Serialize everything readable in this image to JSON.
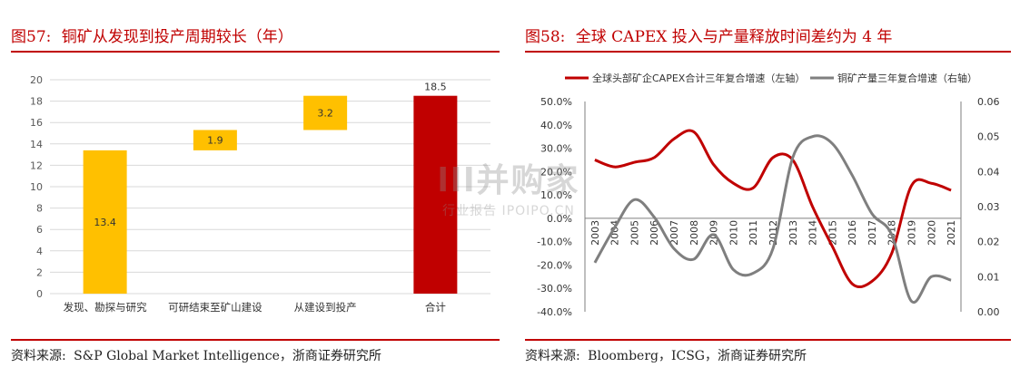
{
  "left": {
    "fig_label": "图57:",
    "title": "铜矿从发现到投产周期较长（年）",
    "source": "资料来源:",
    "source_text": "S&P Global Market Intelligence，浙商证券研究所",
    "chart_data": {
      "type": "bar",
      "subtype": "waterfall",
      "categories": [
        "发现、勘探与研究",
        "可研结束至矿山建设",
        "从建设到投产",
        "合计"
      ],
      "values": [
        13.4,
        1.9,
        3.2,
        18.5
      ],
      "bases": [
        0,
        13.4,
        15.3,
        0
      ],
      "data_labels": [
        "13.4",
        "1.9",
        "3.2",
        "18.5"
      ],
      "colors": [
        "#ffc000",
        "#ffc000",
        "#ffc000",
        "#c00000"
      ],
      "ylim": [
        0,
        20
      ],
      "yticks": [
        "0",
        "2",
        "4",
        "6",
        "8",
        "10",
        "12",
        "14",
        "16",
        "18",
        "20"
      ],
      "grid": true
    }
  },
  "right": {
    "fig_label": "图58:",
    "title": "全球 CAPEX 投入与产量释放时间差约为 4 年",
    "source": "资料来源:",
    "source_text": "Bloomberg，ICSG，浙商证券研究所",
    "chart_data": {
      "type": "line",
      "x": [
        "2003",
        "2004",
        "2005",
        "2006",
        "2007",
        "2008",
        "2009",
        "2010",
        "2011",
        "2012",
        "2013",
        "2014",
        "2015",
        "2016",
        "2017",
        "2018",
        "2019",
        "2020",
        "2021"
      ],
      "series": [
        {
          "name": "全球头部矿企CAPEX合计三年复合增速（左轴）",
          "axis": "left",
          "color": "#c00000",
          "values": [
            0.25,
            0.22,
            0.24,
            0.26,
            0.34,
            0.37,
            0.23,
            0.15,
            0.13,
            0.26,
            0.25,
            0.05,
            -0.12,
            -0.28,
            -0.27,
            -0.15,
            0.14,
            0.15,
            0.12
          ]
        },
        {
          "name": "铜矿产量三年复合增速（右轴）",
          "axis": "right",
          "color": "#7f7f7f",
          "values": [
            0.014,
            0.024,
            0.032,
            0.027,
            0.018,
            0.015,
            0.022,
            0.012,
            0.011,
            0.018,
            0.044,
            0.05,
            0.048,
            0.039,
            0.028,
            0.022,
            0.003,
            0.01,
            0.009
          ]
        }
      ],
      "y_left": {
        "ylim": [
          -0.4,
          0.5
        ],
        "ticks": [
          "-40.0%",
          "-30.0%",
          "-20.0%",
          "-10.0%",
          "0.0%",
          "10.0%",
          "20.0%",
          "30.0%",
          "40.0%",
          "50.0%"
        ]
      },
      "y_right": {
        "ylim": [
          0,
          0.06
        ],
        "ticks": [
          "0.00",
          "0.01",
          "0.02",
          "0.03",
          "0.04",
          "0.05",
          "0.06"
        ]
      },
      "legend_position": "top"
    }
  },
  "watermark": {
    "main": "lll并购家",
    "sub": "行业报告 IPOIPO.CN"
  }
}
